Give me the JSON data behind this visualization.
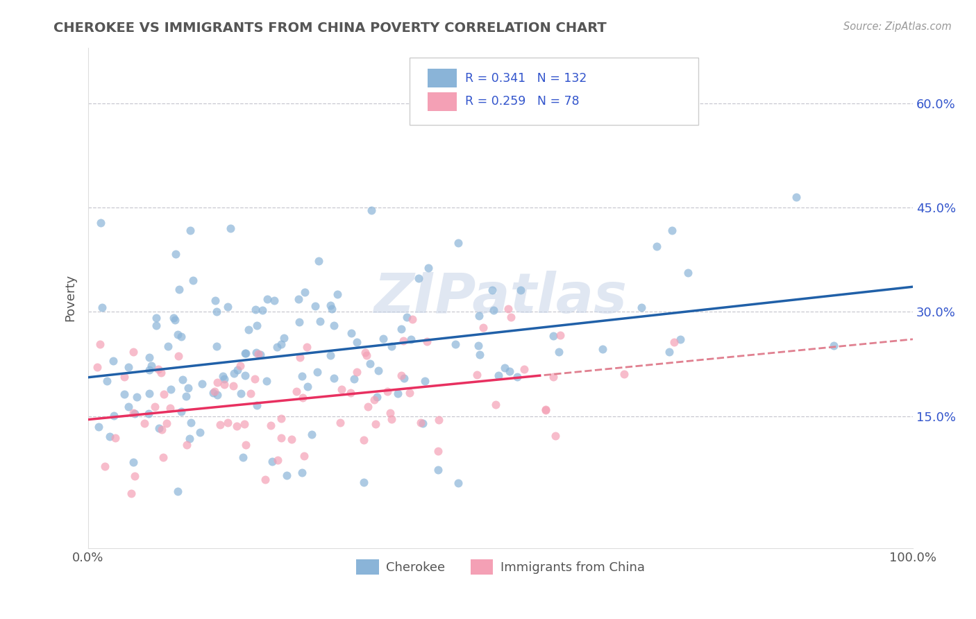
{
  "title": "CHEROKEE VS IMMIGRANTS FROM CHINA POVERTY CORRELATION CHART",
  "source": "Source: ZipAtlas.com",
  "ylabel": "Poverty",
  "yticks": [
    0.15,
    0.3,
    0.45,
    0.6
  ],
  "ytick_labels": [
    "15.0%",
    "30.0%",
    "45.0%",
    "60.0%"
  ],
  "xlim": [
    0.0,
    1.0
  ],
  "ylim": [
    -0.04,
    0.68
  ],
  "cherokee_color": "#8ab4d8",
  "china_color": "#f4a0b5",
  "cherokee_line_color": "#2060a8",
  "china_line_solid_color": "#e83060",
  "china_line_dash_color": "#e08090",
  "cherokee_R": 0.341,
  "cherokee_N": 132,
  "china_R": 0.259,
  "china_N": 78,
  "legend_R_N_color": "#3355cc",
  "legend_label_color": "#3355cc",
  "watermark": "ZIPatlas",
  "grid_color": "#c8c8d0",
  "background_color": "#ffffff",
  "title_color": "#555555",
  "source_color": "#999999",
  "ytick_color": "#3355cc"
}
